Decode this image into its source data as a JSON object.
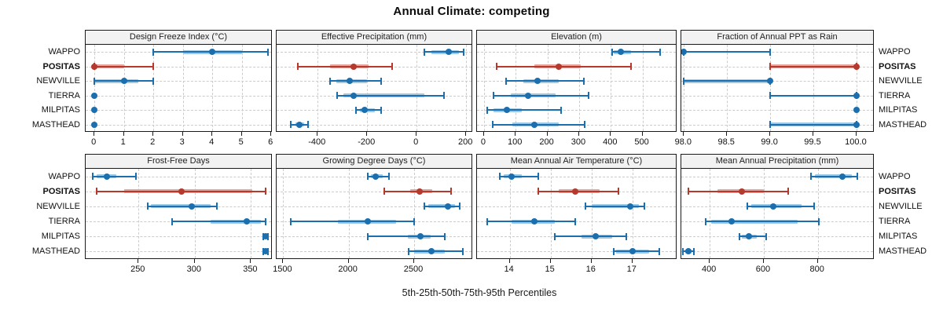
{
  "title": "Annual Climate: competing",
  "caption": "5th-25th-50th-75th-95th Percentiles",
  "colors": {
    "series": "#1b6fae",
    "series_band": "#9fc8e2",
    "highlight": "#b6392d",
    "highlight_band": "#e4a69e",
    "grid": "#cccccc",
    "strip_bg": "#f2f2f2",
    "panel_border": "#1a1a1a"
  },
  "chart_data": {
    "type": "dotplot-percentiles",
    "percentile_labels": [
      "5th",
      "25th",
      "50th",
      "75th",
      "95th"
    ],
    "sites": [
      "WAPPO",
      "POSITAS",
      "NEWVILLE",
      "TIERRA",
      "MILPITAS",
      "MASTHEAD"
    ],
    "highlight_site": "POSITAS",
    "legend": "none",
    "panels": [
      {
        "title": "Design Freeze Index (°C)",
        "row": 0,
        "col": 0,
        "xlim": [
          -0.3,
          6.05
        ],
        "ticks": [
          0,
          1,
          2,
          3,
          4,
          5,
          6
        ],
        "tick_labels": [
          "0",
          "1",
          "2",
          "3",
          "4",
          "5",
          "6"
        ],
        "values": [
          [
            2,
            3,
            4,
            5,
            5.9
          ],
          [
            0,
            0,
            0,
            1,
            2
          ],
          [
            0,
            0,
            1,
            1.5,
            2
          ],
          [
            0,
            0,
            0,
            0,
            0
          ],
          [
            0,
            0,
            0,
            0,
            0
          ],
          [
            0,
            0,
            0,
            0,
            0
          ]
        ]
      },
      {
        "title": "Effective Precipitation (mm)",
        "row": 0,
        "col": 1,
        "xlim": [
          -566,
          228
        ],
        "ticks": [
          -400,
          -200,
          0,
          200
        ],
        "tick_labels": [
          "-400",
          "-200",
          "0",
          "200"
        ],
        "values": [
          [
            30,
            60,
            130,
            170,
            190
          ],
          [
            -480,
            -350,
            -255,
            -195,
            -100
          ],
          [
            -350,
            -325,
            -270,
            -200,
            -145
          ],
          [
            -320,
            -295,
            -255,
            30,
            110
          ],
          [
            -245,
            -230,
            -210,
            -170,
            -145
          ],
          [
            -510,
            -490,
            -475,
            -455,
            -440
          ]
        ]
      },
      {
        "title": "Elevation (m)",
        "row": 0,
        "col": 2,
        "xlim": [
          -22,
          610
        ],
        "ticks": [
          0,
          100,
          200,
          300,
          400,
          500
        ],
        "tick_labels": [
          "0",
          "100",
          "200",
          "300",
          "400",
          "500"
        ],
        "values": [
          [
            405,
            410,
            432,
            465,
            555
          ],
          [
            40,
            160,
            235,
            305,
            465
          ],
          [
            70,
            125,
            170,
            235,
            315
          ],
          [
            30,
            85,
            140,
            225,
            330
          ],
          [
            10,
            30,
            72,
            120,
            243
          ],
          [
            28,
            90,
            158,
            235,
            318
          ]
        ]
      },
      {
        "title": "Fraction of Annual PPT as Rain",
        "row": 0,
        "col": 3,
        "xlim": [
          97.97,
          100.21
        ],
        "ticks": [
          98.0,
          98.5,
          99.0,
          99.5,
          100.0
        ],
        "tick_labels": [
          "98.0",
          "98.5",
          "99.0",
          "99.5",
          "100.0"
        ],
        "values": [
          [
            98,
            98,
            98,
            98,
            99
          ],
          [
            99,
            99,
            100,
            100,
            100
          ],
          [
            98,
            98,
            99,
            99,
            99
          ],
          [
            99,
            100,
            100,
            100,
            100
          ],
          [
            100,
            100,
            100,
            100,
            100
          ],
          [
            99,
            99,
            100,
            100,
            100
          ]
        ]
      },
      {
        "title": "Frost-Free Days",
        "row": 1,
        "col": 0,
        "xlim": [
          203,
          369.3
        ],
        "ticks": [
          250,
          300,
          350
        ],
        "tick_labels": [
          "250",
          "300",
          "350"
        ],
        "values": [
          [
            209,
            213,
            222,
            230,
            248
          ],
          [
            213,
            237,
            288,
            351,
            363
          ],
          [
            258,
            261,
            297,
            314,
            320
          ],
          [
            280,
            314,
            346,
            359,
            363
          ],
          [
            361,
            362,
            363,
            364,
            365
          ],
          [
            361,
            362,
            363,
            364,
            365
          ]
        ]
      },
      {
        "title": "Growing Degree Days (°C)",
        "row": 1,
        "col": 1,
        "xlim": [
          1450,
          2950
        ],
        "ticks": [
          1500,
          2000,
          2500
        ],
        "tick_labels": [
          "1500",
          "2000",
          "2500"
        ],
        "values": [
          [
            2145,
            2170,
            2205,
            2260,
            2305
          ],
          [
            2270,
            2470,
            2540,
            2635,
            2780
          ],
          [
            2580,
            2610,
            2760,
            2815,
            2850
          ],
          [
            1560,
            1920,
            2145,
            2365,
            2500
          ],
          [
            2145,
            2450,
            2550,
            2625,
            2735
          ],
          [
            2455,
            2500,
            2630,
            2735,
            2870
          ]
        ]
      },
      {
        "title": "Mean Annual Air Temperature (°C)",
        "row": 1,
        "col": 2,
        "xlim": [
          13.2,
          18.1
        ],
        "ticks": [
          14,
          15,
          16,
          17
        ],
        "tick_labels": [
          "14",
          "15",
          "16",
          "17"
        ],
        "values": [
          [
            13.75,
            13.85,
            14.05,
            14.3,
            14.7
          ],
          [
            14.7,
            15.2,
            15.6,
            16.2,
            16.65
          ],
          [
            15.85,
            16.0,
            16.95,
            17.15,
            17.3
          ],
          [
            13.45,
            14.05,
            14.6,
            15.1,
            15.6
          ],
          [
            15.1,
            15.75,
            16.1,
            16.5,
            16.85
          ],
          [
            16.55,
            16.6,
            17.0,
            17.4,
            17.65
          ]
        ]
      },
      {
        "title": "Mean Annual Precipitation (mm)",
        "row": 1,
        "col": 3,
        "xlim": [
          295,
          1010
        ],
        "ticks": [
          400,
          600,
          800
        ],
        "tick_labels": [
          "400",
          "600",
          "800"
        ],
        "values": [
          [
            775,
            790,
            890,
            925,
            945
          ],
          [
            320,
            430,
            520,
            600,
            690
          ],
          [
            540,
            555,
            635,
            740,
            785
          ],
          [
            385,
            405,
            480,
            725,
            805
          ],
          [
            510,
            520,
            545,
            575,
            610
          ],
          [
            300,
            310,
            320,
            332,
            342
          ]
        ]
      }
    ]
  }
}
